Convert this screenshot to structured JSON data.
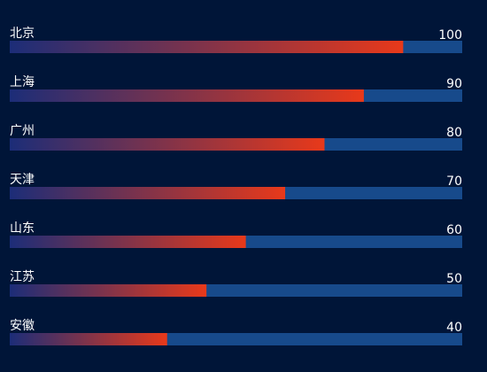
{
  "chart_data": {
    "type": "progress-bar",
    "categories": [
      "北京",
      "上海",
      "广州",
      "天津",
      "山东",
      "江苏",
      "安徽"
    ],
    "values": [
      100,
      90,
      80,
      70,
      60,
      50,
      40
    ],
    "xlim": [
      0,
      115
    ],
    "gradient": [
      "#1c2d78",
      "#e8391a"
    ],
    "track_color": "#174a8b",
    "background": "#001538"
  }
}
